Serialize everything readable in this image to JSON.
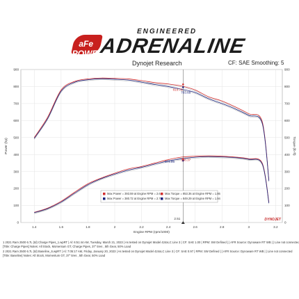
{
  "header": {
    "brand_badge": "aFe POWER",
    "logo_small": "ENGINEERED",
    "logo_main": "ADRENALINE",
    "dyno_label": "Dynojet Research",
    "correction_label": "CF: SAE Smoothing: 5"
  },
  "chart_data": {
    "type": "line",
    "xlabel": "Engine RPM (rpm/1000)",
    "ylabel_left": "Power (hp)",
    "ylabel_right": "Torque (lb·ft)",
    "xlim": [
      1.3,
      3.25
    ],
    "ylim": [
      0,
      900
    ],
    "x_ticks": [
      "1.4",
      "1.6",
      "1.8",
      "2",
      "2.2",
      "2.4",
      "2.6",
      "2.8",
      "3",
      "3.2"
    ],
    "y_ticks_left": [
      "0",
      "100",
      "200",
      "300",
      "400",
      "500",
      "600",
      "700",
      "800",
      "900"
    ],
    "y_ticks_right": [
      "0",
      "100",
      "200",
      "300",
      "400",
      "500",
      "600",
      "700",
      "800",
      "900"
    ],
    "cursor_rpm": 2.51,
    "cursor_label": "2.51",
    "series": [
      {
        "name": "Charge Pipes",
        "quantity": "power",
        "color": "#d32f2f",
        "x": [
          1.4,
          1.5,
          1.6,
          1.7,
          1.8,
          1.9,
          2.0,
          2.1,
          2.2,
          2.3,
          2.4,
          2.5,
          2.6,
          2.7,
          2.8,
          2.9,
          3.0,
          3.1,
          3.15
        ],
        "y": [
          60,
          85,
          125,
          178,
          228,
          262,
          290,
          315,
          330,
          350,
          370,
          385,
          390,
          392,
          390,
          385,
          375,
          350,
          120
        ]
      },
      {
        "name": "Baseline",
        "quantity": "power",
        "color": "#1a237e",
        "x": [
          1.4,
          1.5,
          1.6,
          1.7,
          1.8,
          1.9,
          2.0,
          2.1,
          2.2,
          2.3,
          2.4,
          2.5,
          2.6,
          2.7,
          2.8,
          2.9,
          3.0,
          3.1,
          3.15
        ],
        "y": [
          58,
          82,
          120,
          172,
          222,
          258,
          285,
          308,
          325,
          344,
          362,
          375,
          384,
          388,
          386,
          382,
          372,
          345,
          115
        ]
      },
      {
        "name": "Charge Pipes",
        "quantity": "torque",
        "color": "#d32f2f",
        "x": [
          1.4,
          1.5,
          1.6,
          1.7,
          1.8,
          1.9,
          2.0,
          2.1,
          2.2,
          2.3,
          2.4,
          2.5,
          2.6,
          2.7,
          2.8,
          2.9,
          3.0,
          3.1,
          3.15
        ],
        "y": [
          500,
          620,
          780,
          830,
          845,
          850,
          848,
          845,
          835,
          823,
          815,
          803,
          780,
          740,
          715,
          680,
          640,
          595,
          250
        ]
      },
      {
        "name": "Baseline",
        "quantity": "torque",
        "color": "#1a237e",
        "x": [
          1.4,
          1.5,
          1.6,
          1.7,
          1.8,
          1.9,
          2.0,
          2.1,
          2.2,
          2.3,
          2.4,
          2.5,
          2.6,
          2.7,
          2.8,
          2.9,
          3.0,
          3.1,
          3.15
        ],
        "y": [
          495,
          612,
          772,
          825,
          840,
          846,
          843,
          838,
          826,
          812,
          800,
          784,
          765,
          728,
          700,
          668,
          630,
          585,
          245
        ]
      }
    ],
    "annotations": [
      {
        "text": "813.76",
        "x": 2.47,
        "y": 775,
        "color": "#d32f2f"
      },
      {
        "text": "783.65",
        "x": 2.53,
        "y": 758,
        "color": "#1a237e"
      },
      {
        "text": "374.96",
        "x": 2.41,
        "y": 352,
        "color": "#1a237e"
      },
      {
        "text": "388.37",
        "x": 2.53,
        "y": 362,
        "color": "#d32f2f"
      }
    ],
    "legend": {
      "placement": "bottom-center",
      "rows": [
        {
          "color": "#d32f2f",
          "left": "Max Power = 393.59 at Engine RPM = 2.62",
          "right": "Max Torque = 853.36 at Engine RPM = 1.86"
        },
        {
          "color": "#1a237e",
          "left": "Max Power = 380.72 at Engine RPM = 2.70",
          "right": "Max Torque = 849.29 at Engine RPM = 1.94"
        }
      ]
    },
    "watermark": "DYNOJET"
  },
  "footer": {
    "lines": [
      "1     2021 Ram 2500 6.7L (td) Charge Pipes_1.wpRT | Al: 6:51:44 AM, Tuesday, March 21, 2023 | As tested on Dynojet Model 424xLC Line 3 | CF: SAE 1.00 | RPM: SW Defined | | AFR Source: Dynoware RT WB | | Line not connected",
      "[Title: Charge Pipes]  Notes: All Stock, Momentum GT, Charge Pipes, 37\" tires , 5th Gear, 50% Load",
      "2     2021 Ram 2500 6.7L (td) Baseline_6.wpRT | Al: 7:05:17 AM, Friday, January 20, 2023 | As tested on Dynojet Model 424xLC Line 3 | CF: SAE 0.97 | RPM: SW Defined | | AFR Source: Dynoware RT WB | | Line not connected",
      "[Title: Baseline]  Notes: All Stock, Momentum GT, 37\" tires , 5th Gear, 50% Load"
    ]
  }
}
